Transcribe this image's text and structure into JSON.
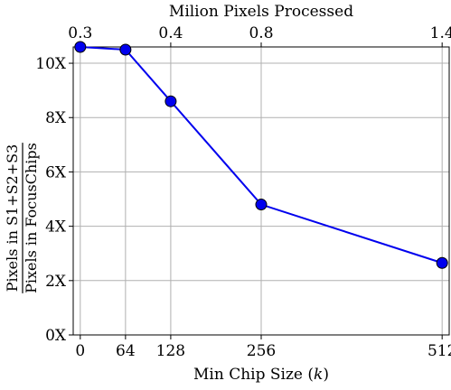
{
  "chart_data": {
    "type": "line",
    "xlabel_prefix": "Min Chip Size (",
    "xlabel_var": "k",
    "xlabel_suffix": ")",
    "top_xlabel": "Milion Pixels Processed",
    "ylabel_numerator": "Pixels in S1+S2+S3",
    "ylabel_denominator": "Pixels in FocusChips",
    "x": [
      0,
      64,
      128,
      256,
      512
    ],
    "xticks": [
      "0",
      "64",
      "128",
      "256",
      "512"
    ],
    "top_xticks": [
      "0.3",
      "0.4",
      "0.8",
      "1.4"
    ],
    "yticks": [
      "0X",
      "2X",
      "4X",
      "6X",
      "8X",
      "10X"
    ],
    "ylim": [
      0,
      10.6
    ],
    "xlim": [
      -10,
      522
    ],
    "grid": true,
    "series": [
      {
        "values": [
          10.6,
          10.5,
          8.6,
          4.8,
          2.65
        ],
        "color": "#0000ee"
      }
    ]
  }
}
